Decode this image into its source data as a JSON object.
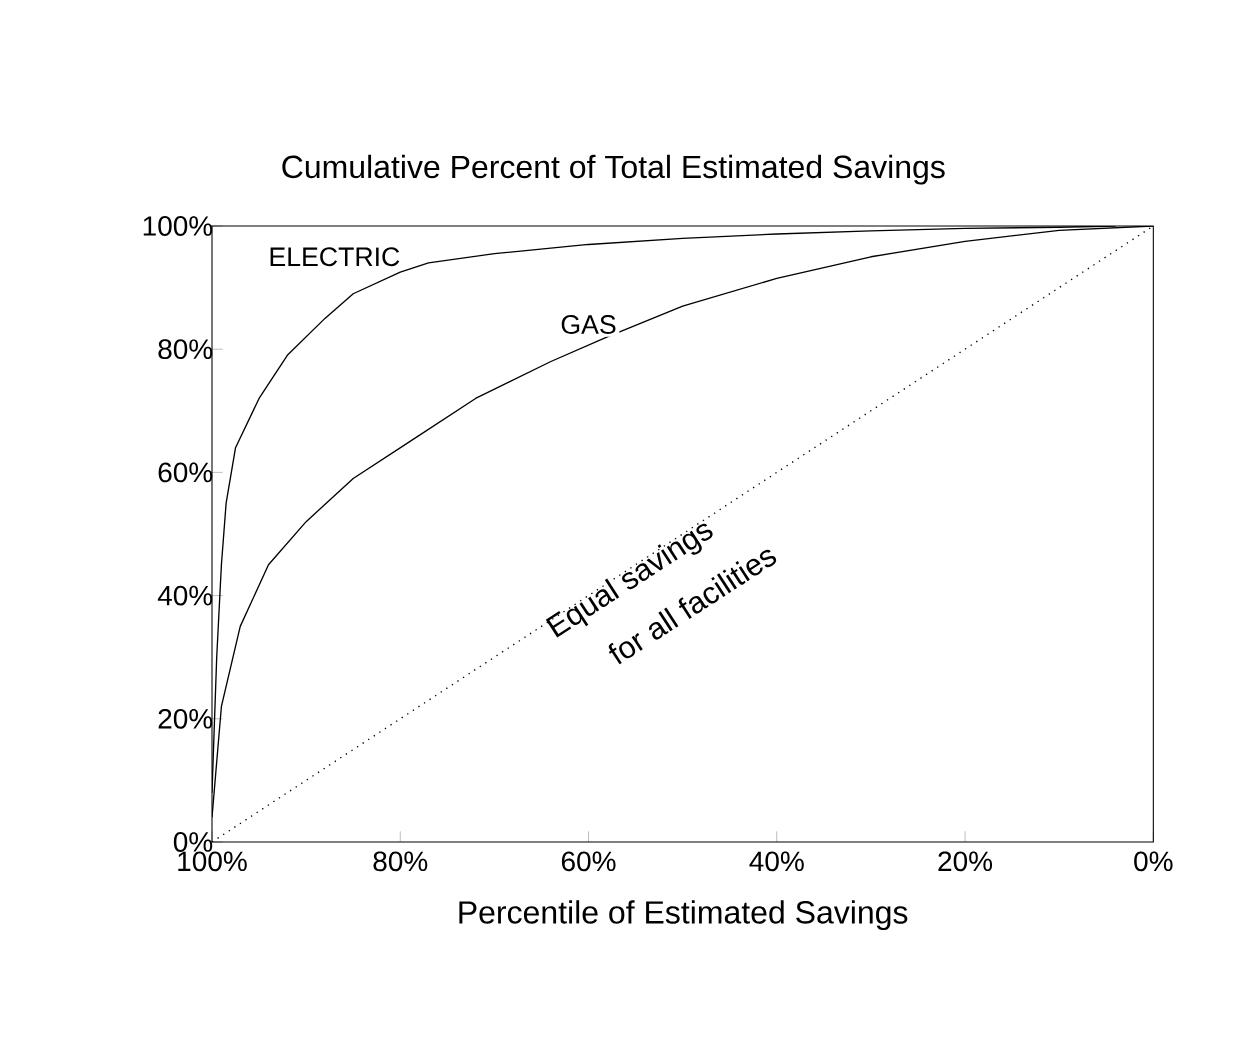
{
  "chart_data": {
    "type": "line",
    "title": "Cumulative Percent of Total Estimated Savings",
    "xlabel": "Percentile of Estimated Savings",
    "xlim": [
      100,
      0
    ],
    "ylim": [
      0,
      100
    ],
    "xticks": [
      {
        "value": 100,
        "label": "100%"
      },
      {
        "value": 80,
        "label": "80%"
      },
      {
        "value": 60,
        "label": "60%"
      },
      {
        "value": 40,
        "label": "40%"
      },
      {
        "value": 20,
        "label": "20%"
      },
      {
        "value": 0,
        "label": "0%"
      }
    ],
    "yticks": [
      {
        "value": 0,
        "label": "0%"
      },
      {
        "value": 20,
        "label": "20%"
      },
      {
        "value": 40,
        "label": "40%"
      },
      {
        "value": 60,
        "label": "60%"
      },
      {
        "value": 80,
        "label": "80%"
      },
      {
        "value": 100,
        "label": "100%"
      }
    ],
    "grid": false,
    "legend": false,
    "marker": "none",
    "series": [
      {
        "name": "ELECTRIC",
        "color": "#000000",
        "line_style": "solid",
        "x": [
          100,
          99.5,
          99,
          98.5,
          97.5,
          95,
          92,
          88,
          85,
          80,
          77,
          70,
          60,
          50,
          40,
          30,
          20,
          10,
          4
        ],
        "values": [
          8,
          30,
          45,
          55,
          64,
          72,
          79,
          85,
          89,
          92.5,
          94,
          95.5,
          97,
          98,
          98.7,
          99.2,
          99.6,
          99.8,
          100
        ]
      },
      {
        "name": "GAS",
        "color": "#000000",
        "line_style": "solid",
        "x": [
          100,
          99,
          97,
          94,
          90,
          85,
          79,
          72,
          64,
          58,
          50,
          40,
          30,
          20,
          10,
          0
        ],
        "values": [
          4,
          22,
          35,
          45,
          52,
          59,
          65,
          72,
          78,
          82,
          87,
          91.5,
          95,
          97.5,
          99.3,
          100
        ]
      },
      {
        "color": "#000000",
        "line_style": "dotted",
        "x": [
          100,
          0
        ],
        "values": [
          0,
          100
        ]
      }
    ],
    "annotations": [
      "Equal savings",
      "for all facilities"
    ]
  }
}
